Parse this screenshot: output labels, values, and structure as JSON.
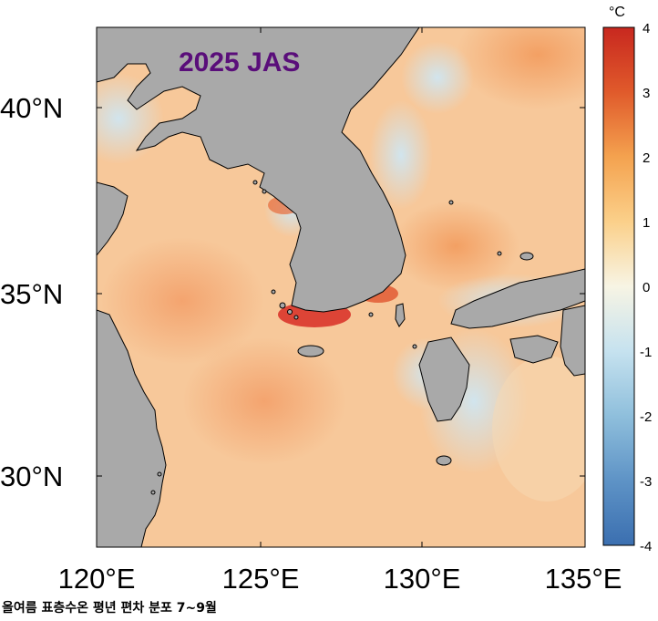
{
  "map": {
    "title": "2025 JAS",
    "lat_labels": [
      "40°N",
      "35°N",
      "30°N"
    ],
    "lon_labels": [
      "120°E",
      "125°E",
      "130°E",
      "135°E"
    ],
    "lon_range": [
      120,
      135
    ],
    "lat_range": [
      28,
      42
    ]
  },
  "colorbar": {
    "unit": "°C",
    "ticks": [
      "4",
      "3",
      "2",
      "1",
      "0",
      "-1",
      "-2",
      "-3",
      "-4"
    ],
    "range": [
      -4,
      4
    ],
    "colors": [
      "#3b6fb0",
      "#7fb3d5",
      "#c6e2ef",
      "#f7f7e6",
      "#fbd08a",
      "#f4a24f",
      "#e05a2b",
      "#c8281f"
    ]
  },
  "caption": "올여름 표층수온 평년 편차 분포 7~9월"
}
